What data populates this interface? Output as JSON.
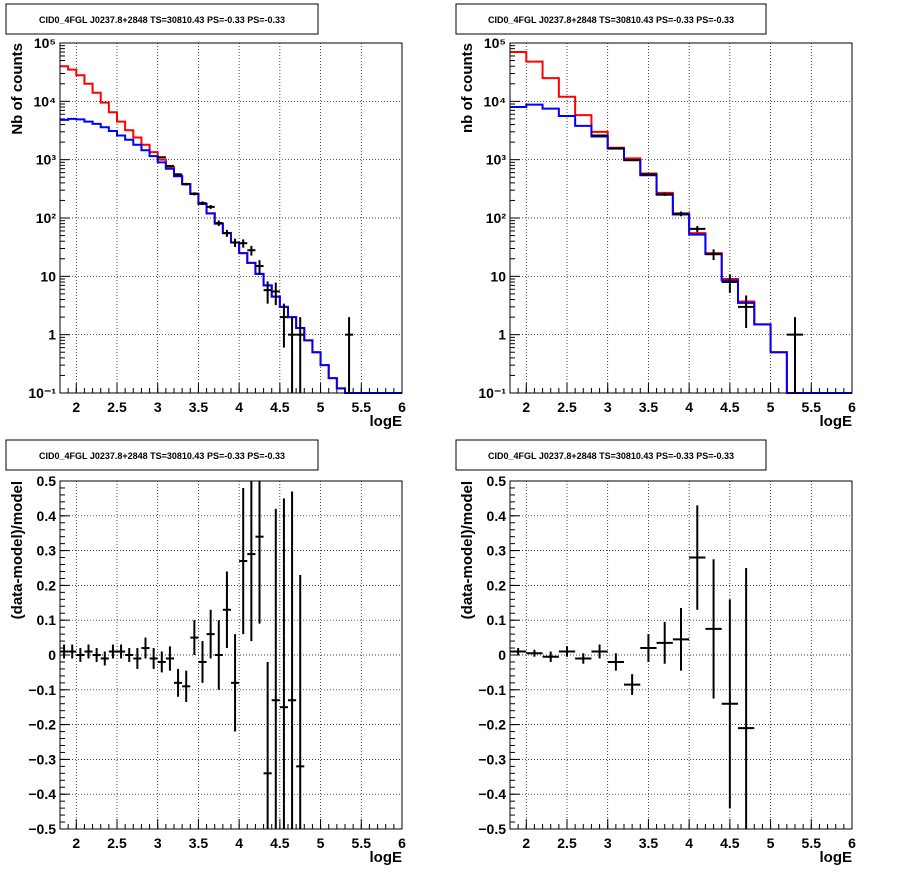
{
  "colors": {
    "data": "#000000",
    "model_total": "#ff0000",
    "model_source": "#0000ff",
    "frame": "#000000",
    "grid": "#000000"
  },
  "chart_data": [
    {
      "type": "line",
      "title": "CID0_4FGL J0237.8+2848 TS=30810.43 PS=-0.33 PS=-0.33",
      "xlabel": "logE",
      "ylabel": "Nb of counts",
      "log_y": true,
      "grid": true,
      "xlim": [
        1.8,
        6.0
      ],
      "ylim": [
        0.1,
        100000
      ],
      "x_ticks": [
        "2",
        "2.5",
        "3",
        "3.5",
        "4",
        "4.5",
        "5",
        "5.5",
        "6"
      ],
      "y_ticks": [
        "10⁻¹",
        "1",
        "10",
        "10²",
        "10³",
        "10⁴",
        "10⁵"
      ],
      "bin_edges": [
        1.8,
        1.9,
        2.0,
        2.1,
        2.2,
        2.3,
        2.4,
        2.5,
        2.6,
        2.7,
        2.8,
        2.9,
        3.0,
        3.1,
        3.2,
        3.3,
        3.4,
        3.5,
        3.6,
        3.7,
        3.8,
        3.9,
        4.0,
        4.1,
        4.2,
        4.3,
        4.4,
        4.5,
        4.6,
        4.7,
        4.8,
        4.9,
        5.0,
        5.1,
        5.2,
        5.3,
        5.4,
        5.5,
        5.6,
        5.7,
        5.8,
        5.9,
        6.0
      ],
      "series": [
        {
          "name": "model_total",
          "color": "#ff0000",
          "values": [
            40000,
            35000,
            28000,
            20000,
            14000,
            9500,
            6500,
            4500,
            3200,
            2400,
            1800,
            1350,
            1000,
            750,
            530,
            380,
            260,
            175,
            120,
            80,
            55,
            38,
            25,
            17,
            11,
            7,
            4.5,
            3,
            2,
            1.3,
            0.8,
            0.5,
            0.3,
            0.18,
            0.12,
            0.1,
            0.1,
            0.1,
            0.1,
            0.1,
            0.1,
            0.1
          ]
        },
        {
          "name": "model_source",
          "color": "#0000ff",
          "values": [
            4800,
            5000,
            4900,
            4500,
            4100,
            3600,
            3100,
            2600,
            2200,
            1800,
            1450,
            1150,
            900,
            700,
            520,
            380,
            260,
            175,
            120,
            80,
            55,
            38,
            25,
            17,
            11,
            7,
            4.5,
            3,
            2,
            1.3,
            0.8,
            0.5,
            0.3,
            0.18,
            0.12,
            0.1,
            0.1,
            0.1,
            0.1,
            0.1,
            0.1,
            0.1
          ]
        }
      ],
      "data_points": [
        {
          "x": 3.05,
          "y": 1100,
          "err": 33
        },
        {
          "x": 3.15,
          "y": 780,
          "err": 28
        },
        {
          "x": 3.25,
          "y": 560,
          "err": 24
        },
        {
          "x": 3.35,
          "y": 380,
          "err": 20
        },
        {
          "x": 3.45,
          "y": 260,
          "err": 16
        },
        {
          "x": 3.55,
          "y": 180,
          "err": 13
        },
        {
          "x": 3.65,
          "y": 155,
          "err": 12
        },
        {
          "x": 3.75,
          "y": 82,
          "err": 9
        },
        {
          "x": 3.85,
          "y": 55,
          "err": 7.5
        },
        {
          "x": 3.95,
          "y": 38,
          "err": 6.2
        },
        {
          "x": 4.05,
          "y": 37,
          "err": 6
        },
        {
          "x": 4.15,
          "y": 28,
          "err": 5.3
        },
        {
          "x": 4.25,
          "y": 15,
          "err": 3.9
        },
        {
          "x": 4.35,
          "y": 5.8,
          "err": 2.4
        },
        {
          "x": 4.45,
          "y": 5.5,
          "err": 2.3
        },
        {
          "x": 4.55,
          "y": 2.0,
          "err": 1.4
        },
        {
          "x": 4.65,
          "y": 1.0,
          "err": 1.0
        },
        {
          "x": 4.75,
          "y": 1.0,
          "err": 1.0
        },
        {
          "x": 5.35,
          "y": 1.0,
          "err": 1.0
        }
      ]
    },
    {
      "type": "line",
      "title": "CID0_4FGL J0237.8+2848 TS=30810.43 PS=-0.33 PS=-0.33",
      "xlabel": "logE",
      "ylabel": "nb of counts",
      "log_y": true,
      "grid": true,
      "xlim": [
        1.8,
        6.0
      ],
      "ylim": [
        0.1,
        100000
      ],
      "x_ticks": [
        "2",
        "2.5",
        "3",
        "3.5",
        "4",
        "4.5",
        "5",
        "5.5",
        "6"
      ],
      "y_ticks": [
        "10⁻¹",
        "1",
        "10",
        "10²",
        "10³",
        "10⁴",
        "10⁵"
      ],
      "bin_edges": [
        1.8,
        2.0,
        2.2,
        2.4,
        2.6,
        2.8,
        3.0,
        3.2,
        3.4,
        3.6,
        3.8,
        4.0,
        4.2,
        4.4,
        4.6,
        4.8,
        5.0,
        5.2,
        5.4,
        5.6,
        5.8,
        6.0
      ],
      "series": [
        {
          "name": "model_total",
          "color": "#ff0000",
          "values": [
            70000,
            48000,
            25000,
            12000,
            5800,
            3000,
            1600,
            1050,
            580,
            270,
            120,
            55,
            25,
            9,
            3.7,
            1.5,
            0.5,
            0.1,
            0.1,
            0.1,
            0.1
          ]
        },
        {
          "name": "model_source",
          "color": "#0000ff",
          "values": [
            8000,
            8800,
            7500,
            5600,
            3800,
            2500,
            1550,
            980,
            540,
            250,
            115,
            52,
            24,
            8.5,
            3.5,
            1.5,
            0.5,
            0.1,
            0.1,
            0.1,
            0.1
          ]
        }
      ],
      "data_points": [
        {
          "x": 2.9,
          "y": 2600,
          "err": 51
        },
        {
          "x": 3.1,
          "y": 1560,
          "err": 40
        },
        {
          "x": 3.3,
          "y": 980,
          "err": 31
        },
        {
          "x": 3.5,
          "y": 560,
          "err": 24
        },
        {
          "x": 3.7,
          "y": 255,
          "err": 16
        },
        {
          "x": 3.9,
          "y": 118,
          "err": 11
        },
        {
          "x": 4.1,
          "y": 65,
          "err": 8
        },
        {
          "x": 4.3,
          "y": 24,
          "err": 5
        },
        {
          "x": 4.5,
          "y": 8,
          "err": 2.8
        },
        {
          "x": 4.7,
          "y": 3.0,
          "err": 1.7
        },
        {
          "x": 5.3,
          "y": 1.0,
          "err": 1.0
        }
      ]
    },
    {
      "type": "scatter",
      "title": "CID0_4FGL J0237.8+2848 TS=30810.43 PS=-0.33 PS=-0.33",
      "xlabel": "logE",
      "ylabel": "(data-model)/model",
      "grid": true,
      "xlim": [
        1.8,
        6.0
      ],
      "ylim": [
        -0.5,
        0.5
      ],
      "x_ticks": [
        "2",
        "2.5",
        "3",
        "3.5",
        "4",
        "4.5",
        "5",
        "5.5",
        "6"
      ],
      "y_ticks": [
        "−0.5",
        "−0.4",
        "−0.3",
        "−0.2",
        "−0.1",
        "0",
        "0.1",
        "0.2",
        "0.3",
        "0.4",
        "0.5"
      ],
      "points": [
        {
          "x": 1.85,
          "y": 0.01,
          "err": 0.02
        },
        {
          "x": 1.95,
          "y": 0.01,
          "err": 0.02
        },
        {
          "x": 2.05,
          "y": 0.0,
          "err": 0.02
        },
        {
          "x": 2.15,
          "y": 0.01,
          "err": 0.02
        },
        {
          "x": 2.25,
          "y": 0.0,
          "err": 0.02
        },
        {
          "x": 2.35,
          "y": -0.01,
          "err": 0.02
        },
        {
          "x": 2.45,
          "y": 0.01,
          "err": 0.02
        },
        {
          "x": 2.55,
          "y": 0.01,
          "err": 0.02
        },
        {
          "x": 2.65,
          "y": 0.0,
          "err": 0.02
        },
        {
          "x": 2.75,
          "y": -0.01,
          "err": 0.03
        },
        {
          "x": 2.85,
          "y": 0.02,
          "err": 0.03
        },
        {
          "x": 2.95,
          "y": -0.01,
          "err": 0.03
        },
        {
          "x": 3.05,
          "y": -0.02,
          "err": 0.03
        },
        {
          "x": 3.15,
          "y": -0.01,
          "err": 0.035
        },
        {
          "x": 3.25,
          "y": -0.08,
          "err": 0.04
        },
        {
          "x": 3.35,
          "y": -0.09,
          "err": 0.045
        },
        {
          "x": 3.45,
          "y": 0.05,
          "err": 0.05
        },
        {
          "x": 3.55,
          "y": -0.02,
          "err": 0.06
        },
        {
          "x": 3.65,
          "y": 0.06,
          "err": 0.07
        },
        {
          "x": 3.75,
          "y": 0.0,
          "err": 0.1
        },
        {
          "x": 3.85,
          "y": 0.13,
          "err": 0.11
        },
        {
          "x": 3.95,
          "y": -0.08,
          "err": 0.14
        },
        {
          "x": 4.05,
          "y": 0.27,
          "err": 0.21
        },
        {
          "x": 4.15,
          "y": 0.29,
          "err": 0.25
        },
        {
          "x": 4.25,
          "y": 0.34,
          "err": 0.25
        },
        {
          "x": 4.35,
          "y": -0.34,
          "err": 0.32
        },
        {
          "x": 4.45,
          "y": -0.13,
          "err": 0.55
        },
        {
          "x": 4.55,
          "y": -0.15,
          "err": 0.6
        },
        {
          "x": 4.65,
          "y": -0.13,
          "err": 0.6
        },
        {
          "x": 4.75,
          "y": -0.32,
          "err": 0.55
        }
      ]
    },
    {
      "type": "scatter",
      "title": "CID0_4FGL J0237.8+2848 TS=30810.43 PS=-0.33 PS=-0.33",
      "xlabel": "logE",
      "ylabel": "(data-model)/model",
      "grid": true,
      "xlim": [
        1.8,
        6.0
      ],
      "ylim": [
        -0.5,
        0.5
      ],
      "x_ticks": [
        "2",
        "2.5",
        "3",
        "3.5",
        "4",
        "4.5",
        "5",
        "5.5",
        "6"
      ],
      "y_ticks": [
        "−0.5",
        "−0.4",
        "−0.3",
        "−0.2",
        "−0.1",
        "0",
        "0.1",
        "0.2",
        "0.3",
        "0.4",
        "0.5"
      ],
      "points": [
        {
          "x": 1.9,
          "y": 0.01,
          "err": 0.01
        },
        {
          "x": 2.1,
          "y": 0.005,
          "err": 0.01
        },
        {
          "x": 2.3,
          "y": -0.005,
          "err": 0.015
        },
        {
          "x": 2.5,
          "y": 0.01,
          "err": 0.015
        },
        {
          "x": 2.7,
          "y": -0.01,
          "err": 0.015
        },
        {
          "x": 2.9,
          "y": 0.01,
          "err": 0.02
        },
        {
          "x": 3.1,
          "y": -0.02,
          "err": 0.025
        },
        {
          "x": 3.3,
          "y": -0.085,
          "err": 0.03
        },
        {
          "x": 3.5,
          "y": 0.02,
          "err": 0.04
        },
        {
          "x": 3.7,
          "y": 0.035,
          "err": 0.06
        },
        {
          "x": 3.9,
          "y": 0.045,
          "err": 0.09
        },
        {
          "x": 4.1,
          "y": 0.28,
          "err": 0.15
        },
        {
          "x": 4.3,
          "y": 0.075,
          "err": 0.2
        },
        {
          "x": 4.5,
          "y": -0.14,
          "err": 0.3
        },
        {
          "x": 4.7,
          "y": -0.21,
          "err": 0.46
        }
      ]
    }
  ]
}
